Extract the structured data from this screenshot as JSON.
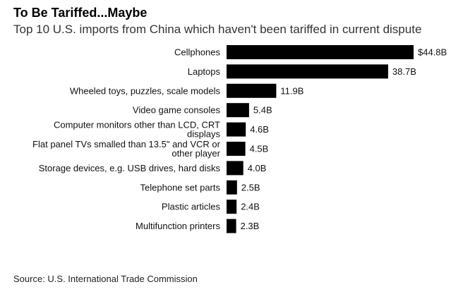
{
  "title": "To Be Tariffed...Maybe",
  "subtitle": "Top 10 U.S. imports from China which haven't been tariffed in current dispute",
  "source": "Source: U.S. International Trade Commission",
  "chart_data": {
    "type": "bar",
    "orientation": "horizontal",
    "title": "To Be Tariffed...Maybe",
    "subtitle": "Top 10 U.S. imports from China which haven't been tariffed in current dispute",
    "categories": [
      [
        "Cellphones"
      ],
      [
        "Laptops"
      ],
      [
        "Wheeled toys, puzzles, scale models"
      ],
      [
        "Video game consoles"
      ],
      [
        "Computer monitors other than LCD, CRT",
        "displays"
      ],
      [
        "Flat panel TVs smalled than 13.5\" and VCR or",
        "other player"
      ],
      [
        "Storage devices, e.g. USB drives, hard disks"
      ],
      [
        "Telephone set parts"
      ],
      [
        "Plastic articles"
      ],
      [
        "Multifunction printers"
      ]
    ],
    "values": [
      44.8,
      38.7,
      11.9,
      5.4,
      4.6,
      4.5,
      4.0,
      2.5,
      2.4,
      2.3
    ],
    "value_labels": [
      "$44.8B",
      "38.7B",
      "11.9B",
      "5.4B",
      "4.6B",
      "4.5B",
      "4.0B",
      "2.5B",
      "2.4B",
      "2.3B"
    ],
    "unit": "billion USD",
    "bar_color": "#000000",
    "grid": false,
    "legend": "none"
  }
}
